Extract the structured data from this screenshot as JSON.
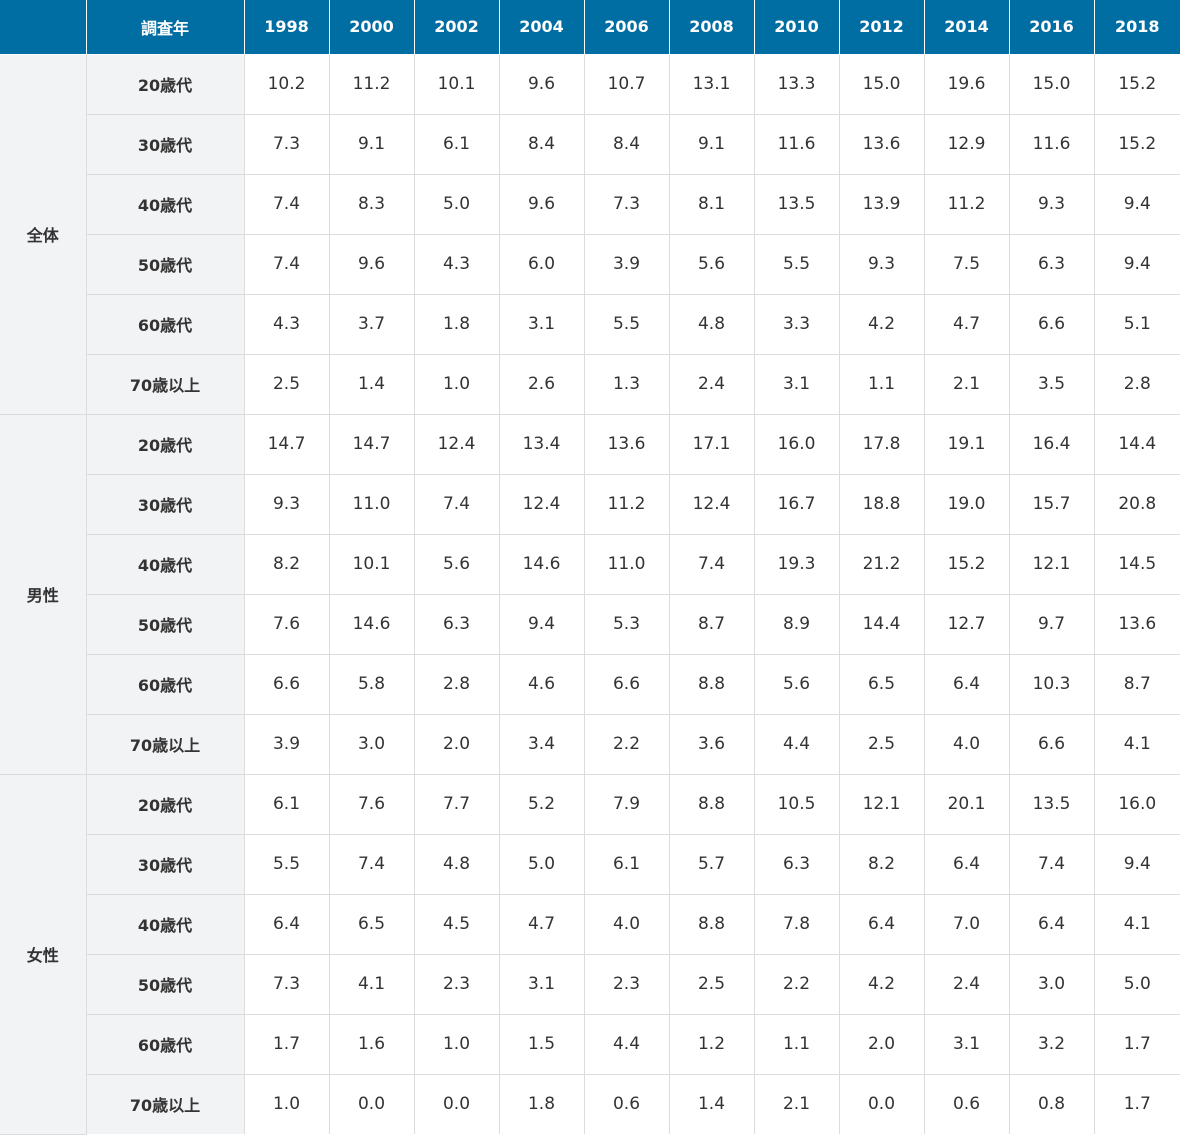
{
  "header": {
    "corner": "",
    "label": "調査年",
    "years": [
      "1998",
      "2000",
      "2002",
      "2004",
      "2006",
      "2008",
      "2010",
      "2012",
      "2014",
      "2016",
      "2018"
    ]
  },
  "groups": [
    {
      "name": "全体",
      "rows": [
        {
          "age": "20歳代",
          "values": [
            "10.2",
            "11.2",
            "10.1",
            "9.6",
            "10.7",
            "13.1",
            "13.3",
            "15.0",
            "19.6",
            "15.0",
            "15.2"
          ]
        },
        {
          "age": "30歳代",
          "values": [
            "7.3",
            "9.1",
            "6.1",
            "8.4",
            "8.4",
            "9.1",
            "11.6",
            "13.6",
            "12.9",
            "11.6",
            "15.2"
          ]
        },
        {
          "age": "40歳代",
          "values": [
            "7.4",
            "8.3",
            "5.0",
            "9.6",
            "7.3",
            "8.1",
            "13.5",
            "13.9",
            "11.2",
            "9.3",
            "9.4"
          ]
        },
        {
          "age": "50歳代",
          "values": [
            "7.4",
            "9.6",
            "4.3",
            "6.0",
            "3.9",
            "5.6",
            "5.5",
            "9.3",
            "7.5",
            "6.3",
            "9.4"
          ]
        },
        {
          "age": "60歳代",
          "values": [
            "4.3",
            "3.7",
            "1.8",
            "3.1",
            "5.5",
            "4.8",
            "3.3",
            "4.2",
            "4.7",
            "6.6",
            "5.1"
          ]
        },
        {
          "age": "70歳以上",
          "values": [
            "2.5",
            "1.4",
            "1.0",
            "2.6",
            "1.3",
            "2.4",
            "3.1",
            "1.1",
            "2.1",
            "3.5",
            "2.8"
          ]
        }
      ]
    },
    {
      "name": "男性",
      "rows": [
        {
          "age": "20歳代",
          "values": [
            "14.7",
            "14.7",
            "12.4",
            "13.4",
            "13.6",
            "17.1",
            "16.0",
            "17.8",
            "19.1",
            "16.4",
            "14.4"
          ]
        },
        {
          "age": "30歳代",
          "values": [
            "9.3",
            "11.0",
            "7.4",
            "12.4",
            "11.2",
            "12.4",
            "16.7",
            "18.8",
            "19.0",
            "15.7",
            "20.8"
          ]
        },
        {
          "age": "40歳代",
          "values": [
            "8.2",
            "10.1",
            "5.6",
            "14.6",
            "11.0",
            "7.4",
            "19.3",
            "21.2",
            "15.2",
            "12.1",
            "14.5"
          ]
        },
        {
          "age": "50歳代",
          "values": [
            "7.6",
            "14.6",
            "6.3",
            "9.4",
            "5.3",
            "8.7",
            "8.9",
            "14.4",
            "12.7",
            "9.7",
            "13.6"
          ]
        },
        {
          "age": "60歳代",
          "values": [
            "6.6",
            "5.8",
            "2.8",
            "4.6",
            "6.6",
            "8.8",
            "5.6",
            "6.5",
            "6.4",
            "10.3",
            "8.7"
          ]
        },
        {
          "age": "70歳以上",
          "values": [
            "3.9",
            "3.0",
            "2.0",
            "3.4",
            "2.2",
            "3.6",
            "4.4",
            "2.5",
            "4.0",
            "6.6",
            "4.1"
          ]
        }
      ]
    },
    {
      "name": "女性",
      "rows": [
        {
          "age": "20歳代",
          "values": [
            "6.1",
            "7.6",
            "7.7",
            "5.2",
            "7.9",
            "8.8",
            "10.5",
            "12.1",
            "20.1",
            "13.5",
            "16.0"
          ]
        },
        {
          "age": "30歳代",
          "values": [
            "5.5",
            "7.4",
            "4.8",
            "5.0",
            "6.1",
            "5.7",
            "6.3",
            "8.2",
            "6.4",
            "7.4",
            "9.4"
          ]
        },
        {
          "age": "40歳代",
          "values": [
            "6.4",
            "6.5",
            "4.5",
            "4.7",
            "4.0",
            "8.8",
            "7.8",
            "6.4",
            "7.0",
            "6.4",
            "4.1"
          ]
        },
        {
          "age": "50歳代",
          "values": [
            "7.3",
            "4.1",
            "2.3",
            "3.1",
            "2.3",
            "2.5",
            "2.2",
            "4.2",
            "2.4",
            "3.0",
            "5.0"
          ]
        },
        {
          "age": "60歳代",
          "values": [
            "1.7",
            "1.6",
            "1.0",
            "1.5",
            "4.4",
            "1.2",
            "1.1",
            "2.0",
            "3.1",
            "3.2",
            "1.7"
          ]
        },
        {
          "age": "70歳以上",
          "values": [
            "1.0",
            "0.0",
            "0.0",
            "1.8",
            "0.6",
            "1.4",
            "2.1",
            "0.0",
            "0.6",
            "0.8",
            "1.7"
          ]
        }
      ]
    }
  ]
}
